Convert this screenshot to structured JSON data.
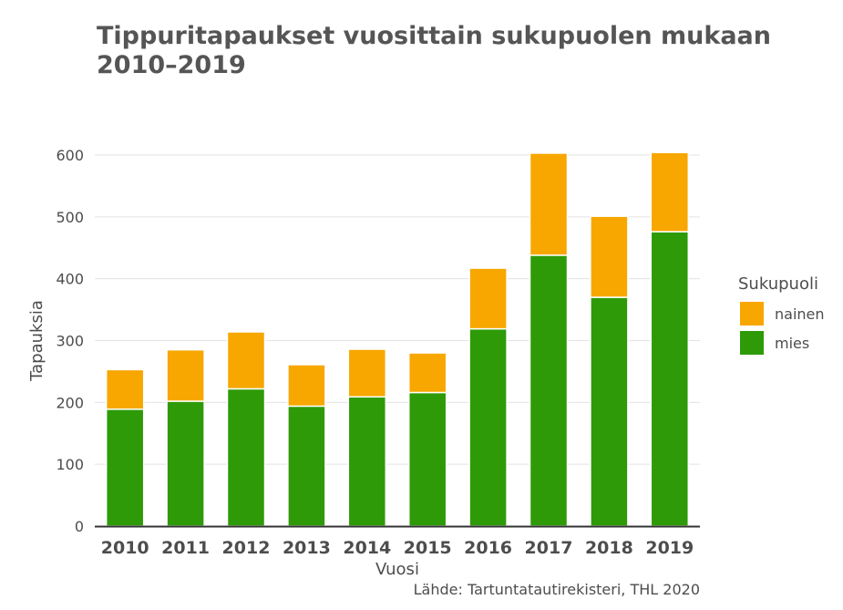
{
  "chart_data": {
    "type": "bar",
    "stacked": true,
    "title": "Tippuritapaukset vuosittain sukupuolen mukaan 2010–2019",
    "xlabel": "Vuosi",
    "ylabel": "Tapauksia",
    "ylim": [
      0,
      640
    ],
    "yticks": [
      0,
      100,
      200,
      300,
      400,
      500,
      600
    ],
    "grid": true,
    "legend_title": "Sukupuoli",
    "legend_position": "right",
    "source": "Lähde: Tartuntatautirekisteri, THL 2020",
    "categories": [
      "2010",
      "2011",
      "2012",
      "2013",
      "2014",
      "2015",
      "2016",
      "2017",
      "2018",
      "2019"
    ],
    "series": [
      {
        "name": "mies",
        "color": "#2e9a07",
        "values": [
          189,
          202,
          222,
          194,
          209,
          216,
          319,
          438,
          370,
          476
        ]
      },
      {
        "name": "nainen",
        "color": "#f7a700",
        "values": [
          64,
          83,
          92,
          67,
          77,
          64,
          98,
          165,
          131,
          128
        ]
      }
    ],
    "legend_order": [
      "nainen",
      "mies"
    ]
  }
}
